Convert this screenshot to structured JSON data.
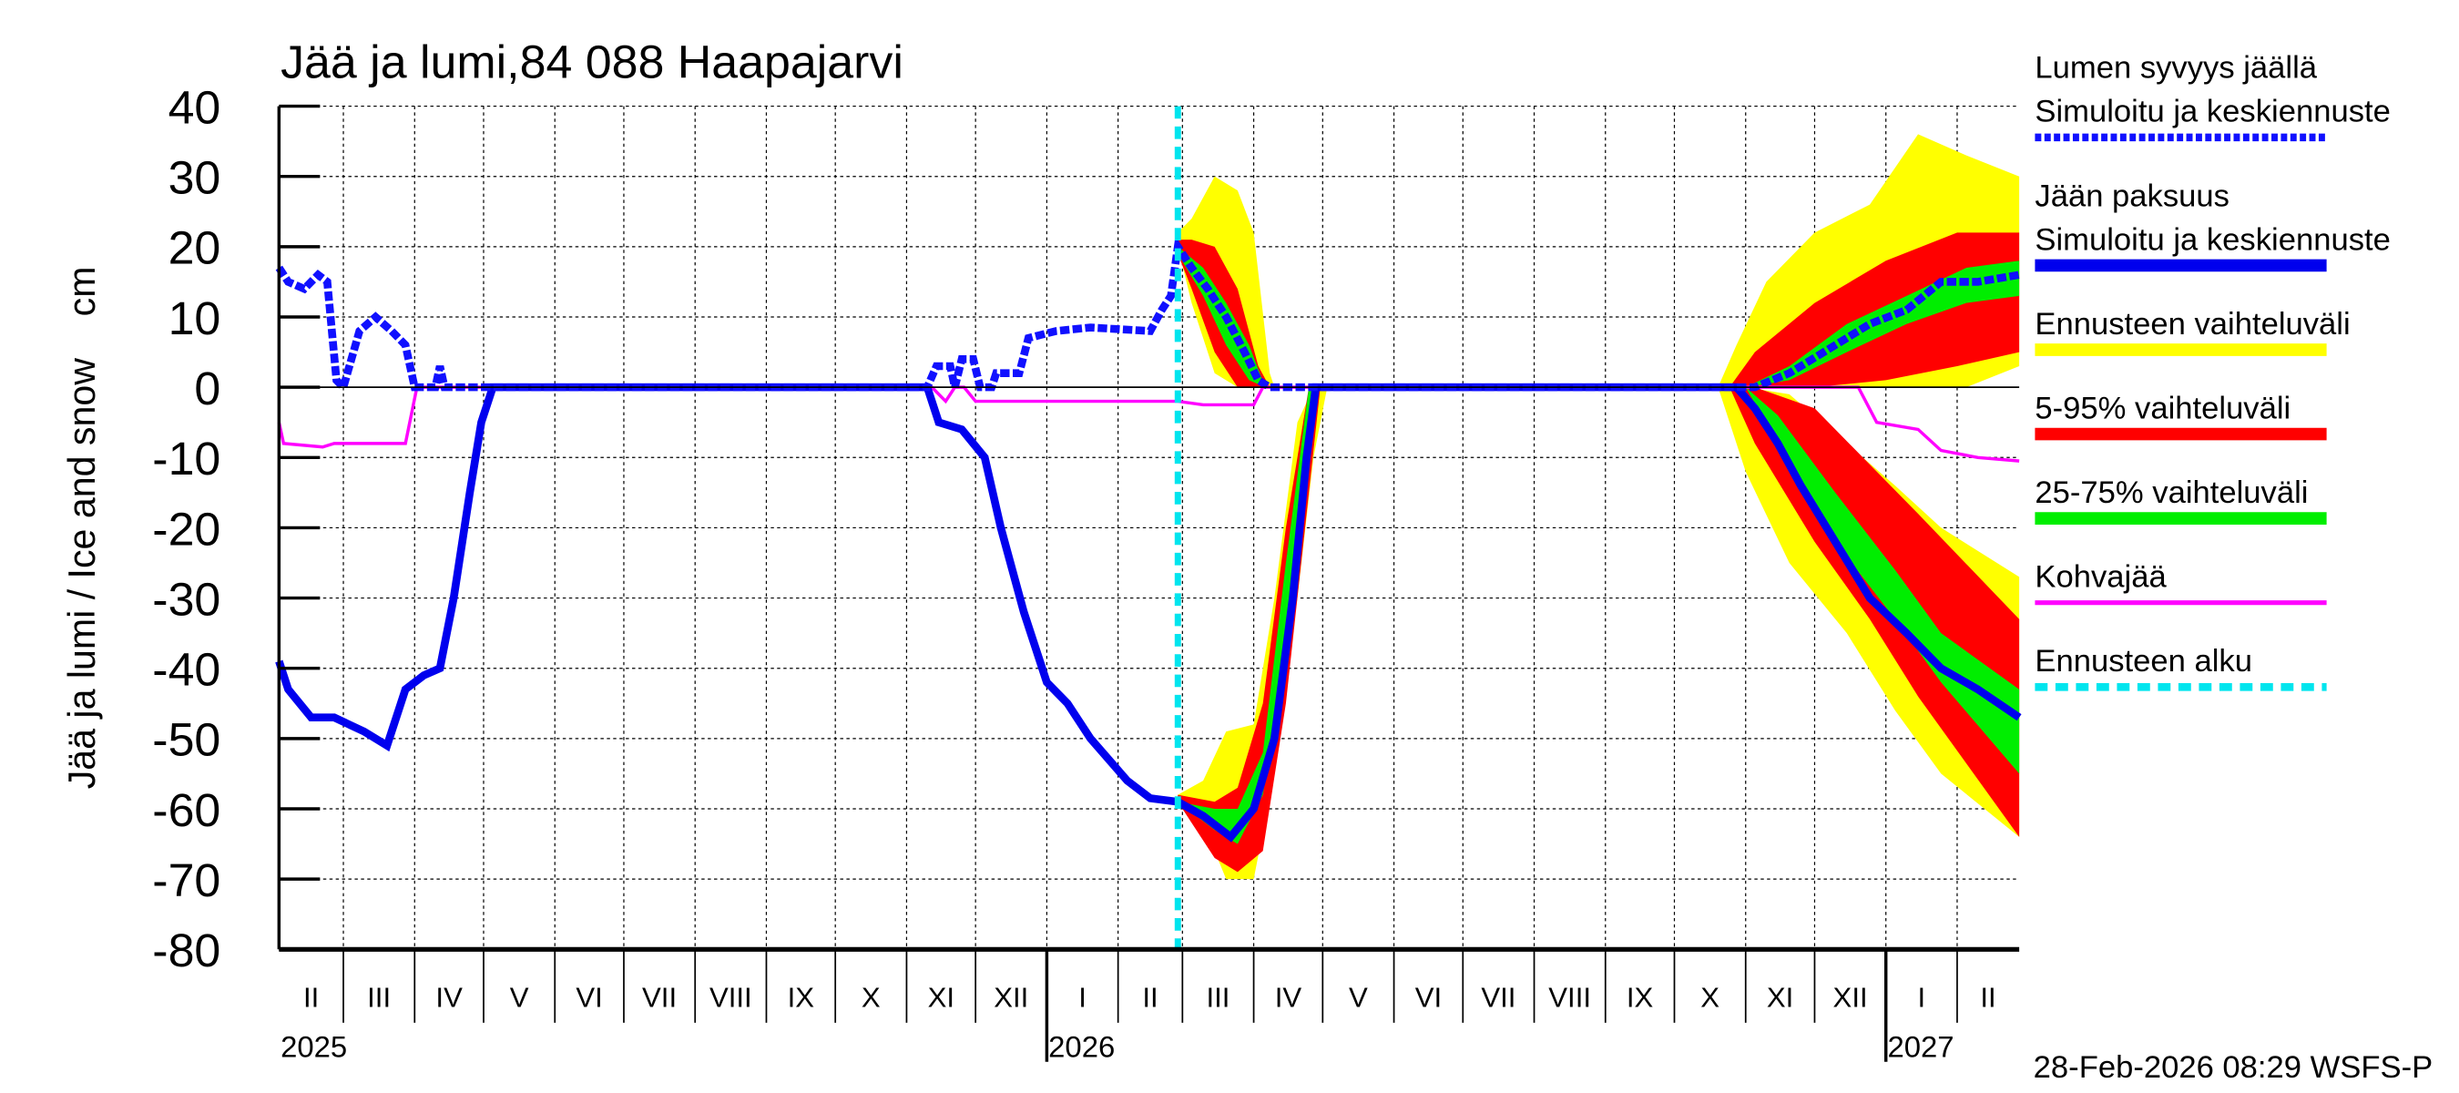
{
  "chart_data": {
    "type": "line",
    "title": "Jää ja lumi,84 088 Haapajarvi",
    "ylabel": "Jää ja lumi / Ice and snow    cm",
    "ylim": [
      -80,
      40
    ],
    "yticks": [
      40,
      30,
      20,
      10,
      0,
      -10,
      -20,
      -30,
      -40,
      -50,
      -60,
      -70,
      -80
    ],
    "xlim": [
      "2025-02-01",
      "2027-02-28"
    ],
    "grid": true,
    "legend_placement": "right",
    "month_labels": [
      "II",
      "III",
      "IV",
      "V",
      "VI",
      "VII",
      "VIII",
      "IX",
      "X",
      "XI",
      "XII",
      "I",
      "II",
      "III",
      "IV",
      "V",
      "VI",
      "VII",
      "VIII",
      "IX",
      "X",
      "XI",
      "XII",
      "I",
      "II"
    ],
    "year_labels": [
      {
        "year": "2025",
        "date": "2025-02-01"
      },
      {
        "year": "2026",
        "date": "2026-01-01"
      },
      {
        "year": "2027",
        "date": "2027-01-01"
      }
    ],
    "forecast_start": "2026-02-27",
    "footer": "28-Feb-2026 08:29 WSFS-P",
    "colors": {
      "snow": "#1010ff",
      "ice": "#0000ee",
      "range": "#ffff00",
      "p5_95": "#ff0000",
      "p25_75": "#00ee00",
      "kohva": "#ff00ff",
      "forecast": "#00e5ee"
    },
    "legend": [
      {
        "label1": "Lumen syvyys jäällä",
        "label2": "Simuloitu ja keskiennuste",
        "style": "snow"
      },
      {
        "label1": "Jään paksuus",
        "label2": "Simuloitu ja keskiennuste",
        "style": "ice"
      },
      {
        "label1": "Ennusteen vaihteluväli",
        "style": "range"
      },
      {
        "label1": "5-95% vaihteluväli",
        "style": "p5_95"
      },
      {
        "label1": "25-75% vaihteluväli",
        "style": "p25_75"
      },
      {
        "label1": "Kohvajää",
        "style": "kohva"
      },
      {
        "label1": "Ennusteen alku",
        "style": "forecast"
      }
    ],
    "series": {
      "snow": [
        [
          "2025-02-01",
          17
        ],
        [
          "2025-02-05",
          15
        ],
        [
          "2025-02-12",
          14
        ],
        [
          "2025-02-18",
          16
        ],
        [
          "2025-02-22",
          15
        ],
        [
          "2025-02-26",
          1
        ],
        [
          "2025-03-01",
          0
        ],
        [
          "2025-03-08",
          8
        ],
        [
          "2025-03-15",
          10
        ],
        [
          "2025-03-22",
          8
        ],
        [
          "2025-03-28",
          6
        ],
        [
          "2025-04-01",
          0
        ],
        [
          "2025-04-10",
          0
        ],
        [
          "2025-04-12",
          3
        ],
        [
          "2025-04-14",
          0
        ],
        [
          "2025-11-10",
          0
        ],
        [
          "2025-11-14",
          3
        ],
        [
          "2025-11-20",
          3
        ],
        [
          "2025-11-22",
          0
        ],
        [
          "2025-11-25",
          4
        ],
        [
          "2025-11-30",
          4
        ],
        [
          "2025-12-03",
          0
        ],
        [
          "2025-12-08",
          0
        ],
        [
          "2025-12-10",
          2
        ],
        [
          "2025-12-20",
          2
        ],
        [
          "2025-12-24",
          7
        ],
        [
          "2026-01-05",
          8
        ],
        [
          "2026-01-20",
          8.5
        ],
        [
          "2026-02-15",
          8
        ],
        [
          "2026-02-20",
          11
        ],
        [
          "2026-02-24",
          13
        ],
        [
          "2026-02-27",
          20
        ],
        [
          "2026-03-05",
          17
        ],
        [
          "2026-03-12",
          14
        ],
        [
          "2026-03-20",
          10
        ],
        [
          "2026-03-28",
          5
        ],
        [
          "2026-04-03",
          1
        ],
        [
          "2026-04-08",
          0
        ],
        [
          "2026-11-05",
          0
        ],
        [
          "2026-11-20",
          2
        ],
        [
          "2026-12-05",
          5
        ],
        [
          "2026-12-25",
          9
        ],
        [
          "2027-01-10",
          11
        ],
        [
          "2027-01-25",
          15
        ],
        [
          "2027-02-10",
          15
        ],
        [
          "2027-02-28",
          16
        ]
      ],
      "ice": [
        [
          "2025-02-01",
          -39
        ],
        [
          "2025-02-05",
          -43
        ],
        [
          "2025-02-15",
          -47
        ],
        [
          "2025-02-25",
          -47
        ],
        [
          "2025-03-10",
          -49
        ],
        [
          "2025-03-20",
          -51
        ],
        [
          "2025-03-28",
          -43
        ],
        [
          "2025-04-05",
          -41
        ],
        [
          "2025-04-12",
          -40
        ],
        [
          "2025-04-18",
          -30
        ],
        [
          "2025-04-25",
          -15
        ],
        [
          "2025-04-30",
          -5
        ],
        [
          "2025-05-05",
          0
        ],
        [
          "2025-11-10",
          0
        ],
        [
          "2025-11-15",
          -5
        ],
        [
          "2025-11-25",
          -6
        ],
        [
          "2025-12-05",
          -10
        ],
        [
          "2025-12-12",
          -20
        ],
        [
          "2025-12-22",
          -32
        ],
        [
          "2026-01-01",
          -42
        ],
        [
          "2026-01-10",
          -45
        ],
        [
          "2026-01-20",
          -50
        ],
        [
          "2026-02-05",
          -56
        ],
        [
          "2026-02-15",
          -58.5
        ],
        [
          "2026-02-27",
          -59
        ],
        [
          "2026-03-10",
          -61
        ],
        [
          "2026-03-22",
          -64
        ],
        [
          "2026-04-01",
          -60
        ],
        [
          "2026-04-10",
          -50
        ],
        [
          "2026-04-18",
          -30
        ],
        [
          "2026-04-24",
          -10
        ],
        [
          "2026-04-28",
          0
        ],
        [
          "2026-10-28",
          0
        ],
        [
          "2026-11-05",
          -3
        ],
        [
          "2026-11-15",
          -8
        ],
        [
          "2026-11-25",
          -14
        ],
        [
          "2026-12-10",
          -22
        ],
        [
          "2026-12-25",
          -30
        ],
        [
          "2027-01-10",
          -35
        ],
        [
          "2027-01-25",
          -40
        ],
        [
          "2027-02-10",
          -43
        ],
        [
          "2027-02-28",
          -47
        ]
      ],
      "kohva": [
        [
          "2025-02-01",
          -5
        ],
        [
          "2025-02-03",
          -8
        ],
        [
          "2025-02-20",
          -8.5
        ],
        [
          "2025-02-25",
          -8
        ],
        [
          "2025-03-28",
          -8
        ],
        [
          "2025-04-02",
          0
        ],
        [
          "2025-11-12",
          0
        ],
        [
          "2025-11-18",
          -2
        ],
        [
          "2025-11-22",
          0
        ],
        [
          "2025-11-26",
          0
        ],
        [
          "2025-12-01",
          -2
        ],
        [
          "2026-02-27",
          -2
        ],
        [
          "2026-03-10",
          -2.5
        ],
        [
          "2026-04-01",
          -2.5
        ],
        [
          "2026-04-05",
          0
        ],
        [
          "2026-12-20",
          0
        ],
        [
          "2026-12-28",
          -5
        ],
        [
          "2027-01-15",
          -6
        ],
        [
          "2027-01-25",
          -9
        ],
        [
          "2027-02-10",
          -10
        ],
        [
          "2027-02-28",
          -10.5
        ]
      ]
    },
    "bands": {
      "range": [
        [
          [
            "2026-02-27",
            20,
            22
          ],
          [
            "2026-03-05",
            12,
            24
          ],
          [
            "2026-03-15",
            2,
            30
          ],
          [
            "2026-03-25",
            0,
            28
          ],
          [
            "2026-04-01",
            0,
            22
          ],
          [
            "2026-04-08",
            0,
            2
          ],
          [
            "2026-04-10",
            0,
            0
          ]
        ],
        [
          [
            "2026-02-27",
            -59,
            -58
          ],
          [
            "2026-03-10",
            -62,
            -56
          ],
          [
            "2026-03-20",
            -70,
            -49
          ],
          [
            "2026-04-01",
            -70,
            -48
          ],
          [
            "2026-04-10",
            -55,
            -30
          ],
          [
            "2026-04-20",
            -30,
            -5
          ],
          [
            "2026-04-27",
            -10,
            0
          ],
          [
            "2026-05-03",
            0,
            0
          ]
        ],
        [
          [
            "2026-10-20",
            0,
            0
          ],
          [
            "2026-10-28",
            0,
            6
          ],
          [
            "2026-11-10",
            0,
            15
          ],
          [
            "2026-12-01",
            0,
            22
          ],
          [
            "2026-12-25",
            0,
            26
          ],
          [
            "2027-01-15",
            0,
            36
          ],
          [
            "2027-02-05",
            0,
            33
          ],
          [
            "2027-02-28",
            3,
            30
          ]
        ],
        [
          [
            "2026-10-20",
            0,
            0
          ],
          [
            "2026-11-01",
            -12,
            0
          ],
          [
            "2026-11-20",
            -25,
            -1
          ],
          [
            "2026-12-15",
            -35,
            -8
          ],
          [
            "2027-01-05",
            -46,
            -14
          ],
          [
            "2027-01-25",
            -55,
            -20
          ],
          [
            "2027-02-28",
            -64,
            -27
          ]
        ]
      ],
      "p5_95": [
        [
          [
            "2026-02-27",
            19,
            21
          ],
          [
            "2026-03-05",
            14,
            21
          ],
          [
            "2026-03-15",
            5,
            20
          ],
          [
            "2026-03-25",
            0,
            14
          ],
          [
            "2026-04-03",
            0,
            3
          ],
          [
            "2026-04-08",
            0,
            0
          ]
        ],
        [
          [
            "2026-02-27",
            -59,
            -58
          ],
          [
            "2026-03-15",
            -67,
            -59
          ],
          [
            "2026-03-25",
            -69,
            -57
          ],
          [
            "2026-04-05",
            -66,
            -45
          ],
          [
            "2026-04-15",
            -45,
            -20
          ],
          [
            "2026-04-25",
            -15,
            0
          ],
          [
            "2026-04-30",
            0,
            0
          ]
        ],
        [
          [
            "2026-10-25",
            0,
            0
          ],
          [
            "2026-11-05",
            0,
            5
          ],
          [
            "2026-12-01",
            0,
            12
          ],
          [
            "2027-01-01",
            1,
            18
          ],
          [
            "2027-02-01",
            3,
            22
          ],
          [
            "2027-02-28",
            5,
            22
          ]
        ],
        [
          [
            "2026-10-25",
            0,
            0
          ],
          [
            "2026-11-05",
            -8,
            0
          ],
          [
            "2026-12-01",
            -22,
            -3
          ],
          [
            "2026-12-25",
            -33,
            -11
          ],
          [
            "2027-01-15",
            -44,
            -18
          ],
          [
            "2027-02-28",
            -64,
            -33
          ]
        ]
      ],
      "p25_75": [
        [
          [
            "2026-02-27",
            19,
            20
          ],
          [
            "2026-03-10",
            13,
            17
          ],
          [
            "2026-03-20",
            6,
            12
          ],
          [
            "2026-03-30",
            1,
            6
          ],
          [
            "2026-04-06",
            0,
            0
          ]
        ],
        [
          [
            "2026-02-27",
            -59,
            -59
          ],
          [
            "2026-03-15",
            -63,
            -60
          ],
          [
            "2026-03-25",
            -65,
            -60
          ],
          [
            "2026-04-05",
            -58,
            -52
          ],
          [
            "2026-04-15",
            -38,
            -25
          ],
          [
            "2026-04-25",
            -5,
            0
          ],
          [
            "2026-04-28",
            0,
            0
          ]
        ],
        [
          [
            "2026-11-01",
            0,
            0
          ],
          [
            "2026-11-20",
            1,
            3
          ],
          [
            "2026-12-15",
            5,
            9
          ],
          [
            "2027-01-10",
            9,
            13
          ],
          [
            "2027-02-05",
            12,
            17
          ],
          [
            "2027-02-28",
            13,
            18
          ]
        ],
        [
          [
            "2026-11-01",
            0,
            0
          ],
          [
            "2026-11-15",
            -8,
            -4
          ],
          [
            "2026-12-10",
            -22,
            -15
          ],
          [
            "2027-01-05",
            -33,
            -26
          ],
          [
            "2027-01-25",
            -42,
            -35
          ],
          [
            "2027-02-28",
            -55,
            -43
          ]
        ]
      ]
    }
  }
}
